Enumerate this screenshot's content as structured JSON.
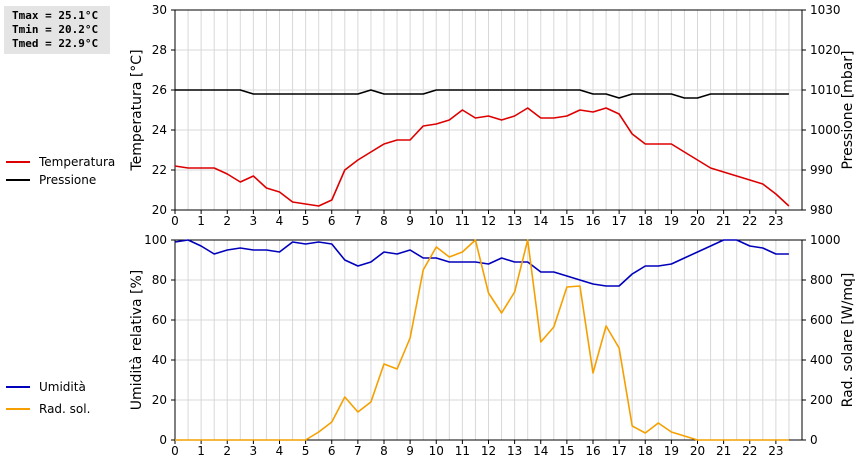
{
  "stats": {
    "tmax": "Tmax = 25.1°C",
    "tmin": "Tmin = 20.2°C",
    "tmed": "Tmed = 22.9°C"
  },
  "colors": {
    "temperature": "#dd0000",
    "pressure": "#000000",
    "humidity": "#0000bb",
    "radiation": "#f5a000",
    "grid": "#d8d8d8"
  },
  "chart_data": [
    {
      "type": "line",
      "x_label_ticks": [
        "0",
        "1",
        "2",
        "3",
        "4",
        "5",
        "6",
        "7",
        "8",
        "9",
        "10",
        "11",
        "12",
        "13",
        "14",
        "15",
        "16",
        "17",
        "18",
        "19",
        "20",
        "21",
        "22",
        "23"
      ],
      "xlim": [
        0,
        24
      ],
      "ylabel_left": "Temperatura [°C]",
      "ylim_left": [
        20,
        30
      ],
      "yticks_left": [
        "20",
        "22",
        "24",
        "26",
        "28",
        "30"
      ],
      "ylabel_right": "Pressione [mbar]",
      "ylim_right": [
        980,
        1030
      ],
      "yticks_right": [
        "980",
        "990",
        "1000",
        "1010",
        "1020",
        "1030"
      ],
      "grid": true,
      "legend_position": "left",
      "series": [
        {
          "name": "Temperatura",
          "axis": "left",
          "x": [
            0,
            0.5,
            1,
            1.5,
            2,
            2.5,
            3,
            3.5,
            4,
            4.5,
            5,
            5.5,
            6,
            6.5,
            7,
            7.5,
            8,
            8.5,
            9,
            9.5,
            10,
            10.5,
            11,
            11.5,
            12,
            12.5,
            13,
            13.5,
            14,
            14.5,
            15,
            15.5,
            16,
            16.5,
            17,
            17.5,
            18,
            18.5,
            19,
            19.5,
            20,
            20.5,
            21,
            21.5,
            22,
            22.5,
            23,
            23.5
          ],
          "values": [
            22.2,
            22.1,
            22.1,
            22.1,
            21.8,
            21.4,
            21.7,
            21.1,
            20.9,
            20.4,
            20.3,
            20.2,
            20.5,
            22.0,
            22.5,
            22.9,
            23.3,
            23.5,
            23.5,
            24.2,
            24.3,
            24.5,
            25.0,
            24.6,
            24.7,
            24.5,
            24.7,
            25.1,
            24.6,
            24.6,
            24.7,
            25.0,
            24.9,
            25.1,
            24.8,
            23.8,
            23.3,
            23.3,
            23.3,
            22.9,
            22.5,
            22.1,
            21.9,
            21.7,
            21.5,
            21.3,
            20.8,
            20.2
          ]
        },
        {
          "name": "Pressione",
          "axis": "right",
          "x": [
            0,
            0.5,
            1,
            1.5,
            2,
            2.5,
            3,
            3.5,
            4,
            4.5,
            5,
            5.5,
            6,
            6.5,
            7,
            7.5,
            8,
            8.5,
            9,
            9.5,
            10,
            10.5,
            11,
            11.5,
            12,
            12.5,
            13,
            13.5,
            14,
            14.5,
            15,
            15.5,
            16,
            16.5,
            17,
            17.5,
            18,
            18.5,
            19,
            19.5,
            20,
            20.5,
            21,
            21.5,
            22,
            22.5,
            23,
            23.5
          ],
          "values": [
            1010,
            1010,
            1010,
            1010,
            1010,
            1010,
            1009,
            1009,
            1009,
            1009,
            1009,
            1009,
            1009,
            1009,
            1009,
            1010,
            1009,
            1009,
            1009,
            1009,
            1010,
            1010,
            1010,
            1010,
            1010,
            1010,
            1010,
            1010,
            1010,
            1010,
            1010,
            1010,
            1009,
            1009,
            1008,
            1009,
            1009,
            1009,
            1009,
            1008,
            1008,
            1009,
            1009,
            1009,
            1009,
            1009,
            1009,
            1009
          ]
        }
      ]
    },
    {
      "type": "line",
      "x_label_ticks": [
        "0",
        "1",
        "2",
        "3",
        "4",
        "5",
        "6",
        "7",
        "8",
        "9",
        "10",
        "11",
        "12",
        "13",
        "14",
        "15",
        "16",
        "17",
        "18",
        "19",
        "20",
        "21",
        "22",
        "23"
      ],
      "xlim": [
        0,
        24
      ],
      "ylabel_left": "Umidità relativa [%]",
      "ylim_left": [
        0,
        100
      ],
      "yticks_left": [
        "0",
        "20",
        "40",
        "60",
        "80",
        "100"
      ],
      "ylabel_right": "Rad. solare [W/mq]",
      "ylim_right": [
        0,
        1000
      ],
      "yticks_right": [
        "0",
        "200",
        "400",
        "600",
        "800",
        "1000"
      ],
      "grid": true,
      "legend_position": "left",
      "series": [
        {
          "name": "Umidità",
          "axis": "left",
          "x": [
            0,
            0.5,
            1,
            1.5,
            2,
            2.5,
            3,
            3.5,
            4,
            4.5,
            5,
            5.5,
            6,
            6.5,
            7,
            7.5,
            8,
            8.5,
            9,
            9.5,
            10,
            10.5,
            11,
            11.5,
            12,
            12.5,
            13,
            13.5,
            14,
            14.5,
            15,
            15.5,
            16,
            16.5,
            17,
            17.5,
            18,
            18.5,
            19,
            19.5,
            20,
            20.5,
            21,
            21.5,
            22,
            22.5,
            23,
            23.5
          ],
          "values": [
            99,
            100,
            97,
            93,
            95,
            96,
            95,
            95,
            94,
            99,
            98,
            99,
            98,
            90,
            87,
            89,
            94,
            93,
            95,
            91,
            91,
            89,
            89,
            89,
            88,
            91,
            89,
            89,
            84,
            84,
            82,
            80,
            78,
            77,
            77,
            83,
            87,
            87,
            88,
            91,
            94,
            97,
            100,
            100,
            97,
            96,
            93,
            93
          ]
        },
        {
          "name": "Rad. sol.",
          "axis": "right",
          "x": [
            0,
            0.5,
            1,
            1.5,
            2,
            2.5,
            3,
            3.5,
            4,
            4.5,
            5,
            5.5,
            6,
            6.5,
            7,
            7.5,
            8,
            8.5,
            9,
            9.5,
            10,
            10.5,
            11,
            11.5,
            12,
            12.5,
            13,
            13.5,
            14,
            14.5,
            15,
            15.5,
            16,
            16.5,
            17,
            17.5,
            18,
            18.5,
            19,
            19.5,
            20,
            20.5,
            21,
            21.5,
            22,
            22.5,
            23,
            23.5
          ],
          "values": [
            0,
            0,
            0,
            0,
            0,
            0,
            0,
            0,
            0,
            0,
            0,
            40,
            90,
            215,
            140,
            190,
            380,
            355,
            510,
            850,
            965,
            915,
            940,
            1010,
            735,
            635,
            740,
            1010,
            490,
            565,
            765,
            770,
            335,
            570,
            460,
            70,
            35,
            85,
            40,
            20,
            0,
            0,
            0,
            0,
            0,
            0,
            0,
            0
          ]
        }
      ]
    }
  ]
}
